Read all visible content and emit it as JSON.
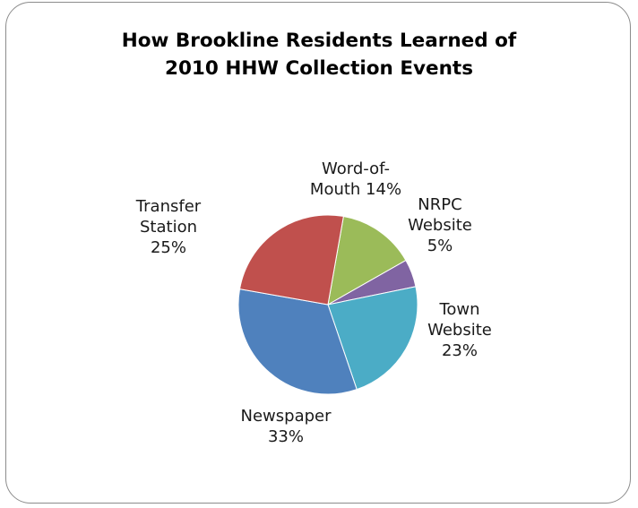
{
  "chart_data": {
    "type": "pie",
    "title": [
      "How Brookline Residents Learned of",
      "2010 HHW Collection Events"
    ],
    "slices": [
      {
        "category": "Word-of-Mouth",
        "value": 14,
        "label_lines": [
          "Word-of-",
          "Mouth 14%"
        ],
        "color": "#9BBB59"
      },
      {
        "category": "NRPC Website",
        "value": 5,
        "label_lines": [
          "NRPC",
          "Website",
          "5%"
        ],
        "color": "#8064A2"
      },
      {
        "category": "Town Website",
        "value": 23,
        "label_lines": [
          "Town",
          "Website",
          "23%"
        ],
        "color": "#4BACC6"
      },
      {
        "category": "Newspaper",
        "value": 33,
        "label_lines": [
          "Newspaper",
          "33%"
        ],
        "color": "#4F81BD"
      },
      {
        "category": "Transfer Station",
        "value": 25,
        "label_lines": [
          "Transfer",
          "Station",
          "25%"
        ],
        "color": "#C0504D"
      }
    ],
    "start_angle_deg": 80,
    "direction": "clockwise",
    "legend": "none"
  }
}
